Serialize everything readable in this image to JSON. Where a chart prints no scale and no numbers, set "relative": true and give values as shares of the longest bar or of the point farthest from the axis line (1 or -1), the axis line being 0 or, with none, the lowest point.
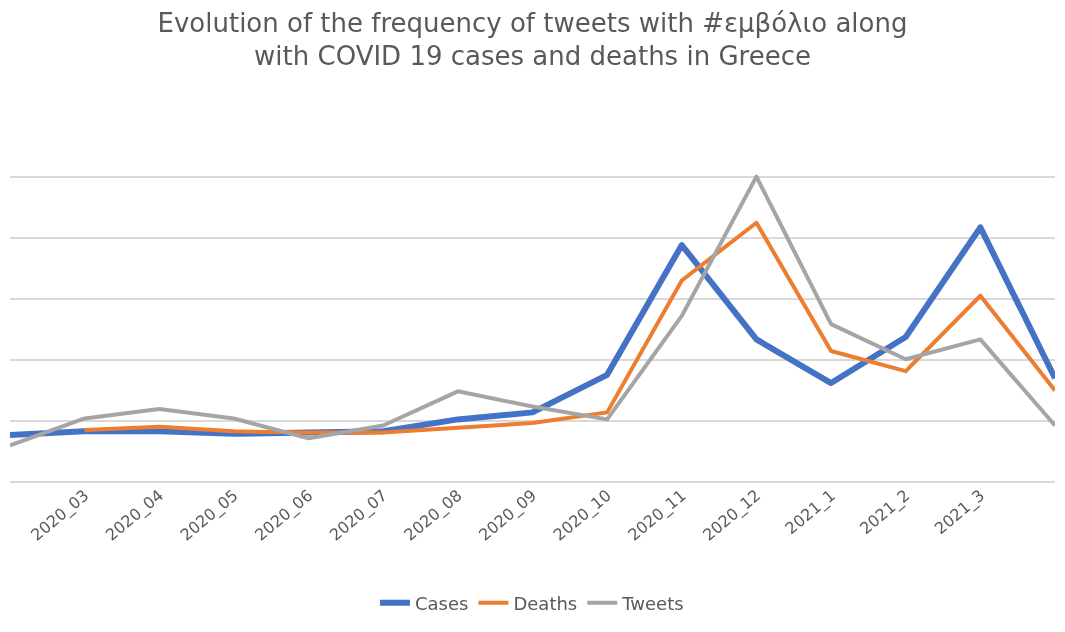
{
  "chart_data": {
    "type": "line",
    "title": "Evolution of the frequency of tweets with #εμβόλιο along with COVID 19 cases and deaths in Greece",
    "categories": [
      null,
      "2020_03",
      "2020_04",
      "2020_05",
      "2020_06",
      "2020_07",
      "2020_08",
      "2020_09",
      "2020_10",
      "2020_11",
      "2020_12",
      "2021_1",
      "2021_2",
      "2021_3",
      null
    ],
    "relative": true,
    "grid": "y",
    "legend": "bottom",
    "marker": "none",
    "line_style": "solid",
    "series": [
      {
        "name": "Cases",
        "color": "#4472c4",
        "values": [
          0.154,
          0.166,
          0.166,
          0.158,
          0.162,
          0.166,
          0.205,
          0.228,
          0.351,
          0.776,
          0.467,
          0.324,
          0.475,
          0.834,
          0.34
        ]
      },
      {
        "name": "Deaths",
        "color": "#ed7d31",
        "values": [
          null,
          0.17,
          0.181,
          0.166,
          0.162,
          0.162,
          0.178,
          0.193,
          0.228,
          0.66,
          0.849,
          0.429,
          0.363,
          0.61,
          0.3
        ]
      },
      {
        "name": "Tweets",
        "color": "#a5a5a5",
        "values": [
          0.12,
          0.208,
          0.239,
          0.208,
          0.143,
          0.185,
          0.297,
          0.247,
          0.205,
          0.544,
          1,
          0.517,
          0.402,
          0.467,
          0.185
        ]
      }
    ]
  }
}
